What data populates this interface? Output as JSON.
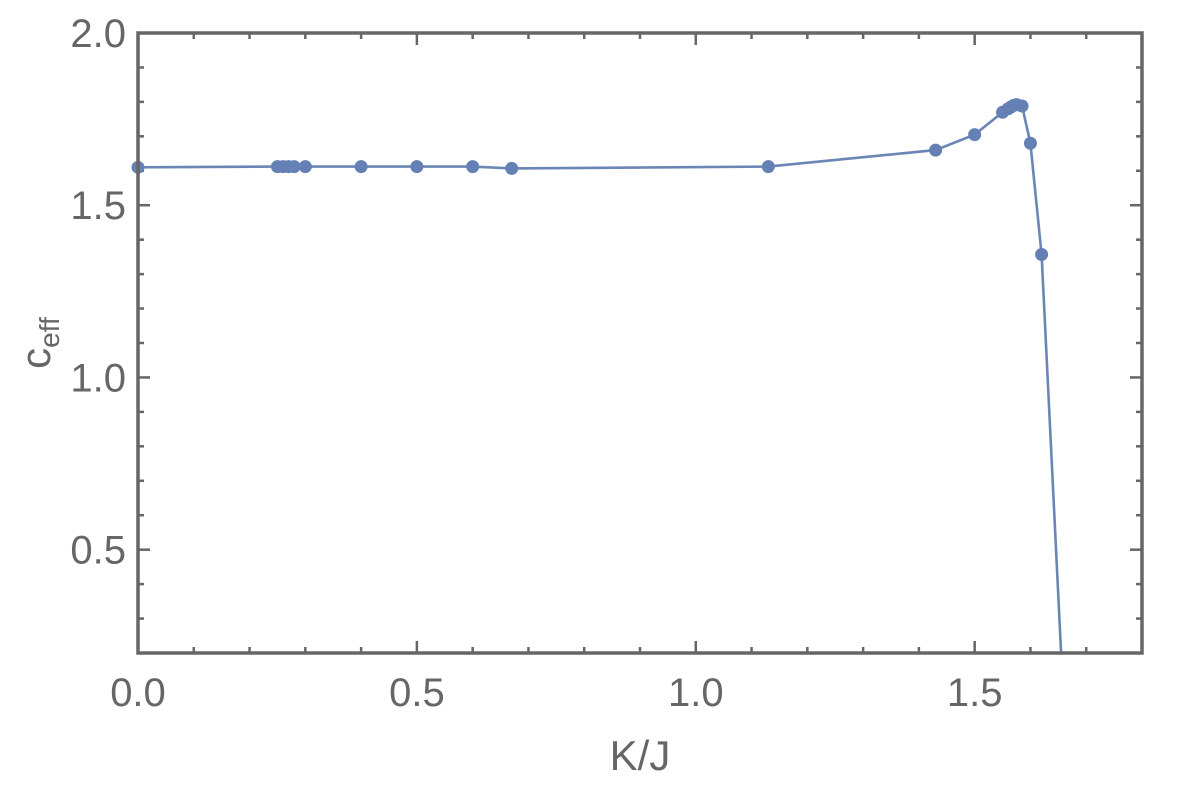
{
  "chart_data": {
    "type": "line",
    "title": "",
    "xlabel": "K/J",
    "ylabel": "c",
    "ylabel_sub": "eff",
    "xlim": [
      0,
      1.8
    ],
    "ylim": [
      0.2,
      2.0
    ],
    "xticks": [
      0.0,
      0.5,
      1.0,
      1.5
    ],
    "xtick_labels": [
      "0.0",
      "0.5",
      "1.0",
      "1.5"
    ],
    "yticks": [
      0.5,
      1.0,
      1.5,
      2.0
    ],
    "ytick_labels": [
      "0.5",
      "1.0",
      "1.5",
      "2.0"
    ],
    "grid": false,
    "legend": "none",
    "color": "#6580b4",
    "series": [
      {
        "x": [
          0.0,
          0.25,
          0.26,
          0.27,
          0.28,
          0.3,
          0.4,
          0.5,
          0.6,
          0.67,
          1.13,
          1.43,
          1.5,
          1.55,
          1.56,
          1.565,
          1.57,
          1.575,
          1.585,
          1.6,
          1.62
        ],
        "y": [
          1.61,
          1.612,
          1.612,
          1.612,
          1.612,
          1.612,
          1.612,
          1.612,
          1.612,
          1.607,
          1.612,
          1.66,
          1.705,
          1.77,
          1.78,
          1.785,
          1.79,
          1.792,
          1.788,
          1.68,
          1.357
        ],
        "line_x": [
          0.0,
          0.25,
          0.26,
          0.27,
          0.28,
          0.3,
          0.4,
          0.5,
          0.6,
          0.67,
          1.13,
          1.43,
          1.5,
          1.55,
          1.56,
          1.565,
          1.57,
          1.575,
          1.585,
          1.6,
          1.62,
          1.655
        ],
        "line_y": [
          1.61,
          1.612,
          1.612,
          1.612,
          1.612,
          1.612,
          1.612,
          1.612,
          1.612,
          1.607,
          1.612,
          1.66,
          1.705,
          1.77,
          1.78,
          1.785,
          1.79,
          1.792,
          1.788,
          1.68,
          1.357,
          0.2
        ]
      }
    ]
  }
}
